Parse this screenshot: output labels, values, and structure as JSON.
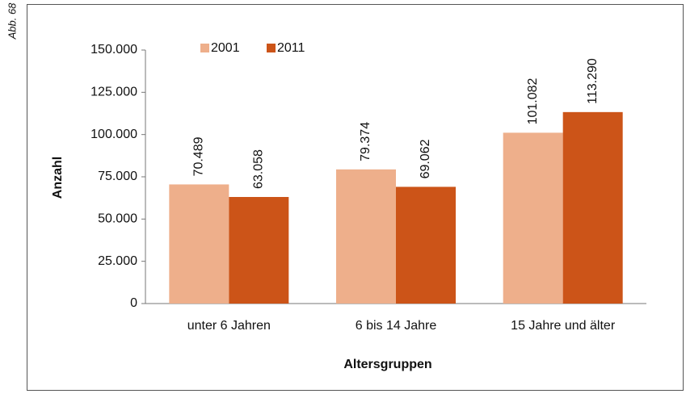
{
  "figure_label": "Abb. 68",
  "chart_data": {
    "type": "bar",
    "x_label": "Altersgruppen",
    "y_label": "Anzahl",
    "categories": [
      "unter 6 Jahren",
      "6 bis 14 Jahre",
      "15 Jahre und älter"
    ],
    "series": [
      {
        "name": "2001",
        "color": "#eeaf8b",
        "values": [
          70489,
          79374,
          101082
        ],
        "value_labels": [
          "70.489",
          "79.374",
          "101.082"
        ]
      },
      {
        "name": "2011",
        "color": "#cc5418",
        "values": [
          63058,
          69062,
          113290
        ],
        "value_labels": [
          "63.058",
          "69.062",
          "113.290"
        ]
      }
    ],
    "ylim": [
      0,
      150000
    ],
    "yticks": [
      0,
      {
        "value": 25000,
        "label": "25.000"
      },
      {
        "value": 50000,
        "label": "50.000"
      },
      {
        "value": 75000,
        "label": "75.000"
      },
      {
        "value": 100000,
        "label": "100.000"
      },
      {
        "value": 125000,
        "label": "125.000"
      },
      {
        "value": 150000,
        "label": "150.000"
      }
    ],
    "legend": "top"
  }
}
